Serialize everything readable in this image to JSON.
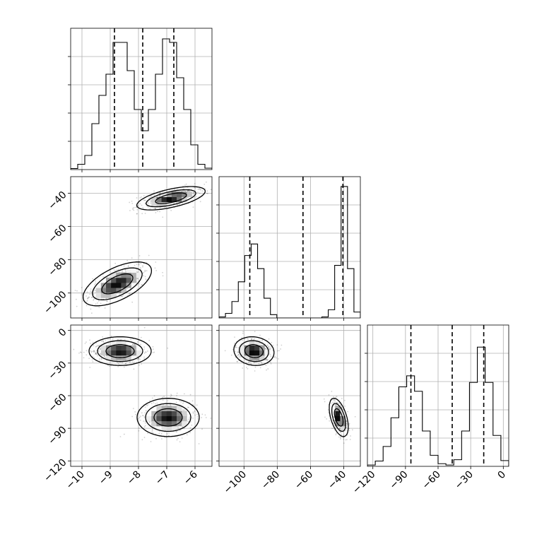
{
  "chart_data": {
    "type": "corner",
    "grid": true,
    "parameters": [
      {
        "range": [
          -10.4,
          -5.4
        ],
        "ticks": [
          -10,
          -9,
          -8,
          -7,
          -6
        ],
        "tick_labels": [
          "−10",
          "−9",
          "−8",
          "−7",
          "−6"
        ],
        "quantiles": [
          -8.85,
          -7.85,
          -6.75
        ],
        "histogram": {
          "counts": [
            0.3,
            1.5,
            4,
            13,
            21,
            27,
            36,
            36,
            28,
            17,
            11,
            17,
            27,
            37,
            36,
            26,
            17,
            7,
            1.5,
            0.4
          ],
          "ymax": 40
        }
      },
      {
        "range": [
          -115,
          -30
        ],
        "ticks": [
          -100,
          -80,
          -60,
          -40
        ],
        "tick_labels": [
          "−100",
          "−80",
          "−60",
          "−40"
        ],
        "quantiles": [
          -96.5,
          -64.5,
          -40.5
        ],
        "histogram": {
          "counts": [
            0.3,
            1.4,
            5,
            11,
            19,
            22.5,
            15,
            6,
            1,
            0,
            0,
            0,
            0,
            0,
            0,
            0,
            0.3,
            2.5,
            16,
            40,
            15,
            1.8
          ],
          "ymax": 43
        }
      },
      {
        "range": [
          -125,
          5
        ],
        "ticks": [
          -120,
          -90,
          -60,
          -30,
          0
        ],
        "tick_labels": [
          "−120",
          "−90",
          "−60",
          "−30",
          "0"
        ],
        "quantiles": [
          -85,
          -47,
          -18
        ],
        "histogram": {
          "counts": [
            0.3,
            1.2,
            4.5,
            11,
            18,
            20.5,
            17,
            8,
            2.5,
            0.6,
            0.3,
            1.5,
            8,
            19,
            27,
            19,
            7,
            1.3
          ],
          "ymax": 32
        }
      }
    ],
    "pairs": [
      {
        "x_param": 0,
        "y_param": 1,
        "modes": [
          {
            "cx": -8.75,
            "cy": -94.5,
            "sx": 0.55,
            "sy": 6.0,
            "rho": 0.6,
            "weight": 0.5
          },
          {
            "cx": -6.85,
            "cy": -43.0,
            "sx": 0.55,
            "sy": 3.2,
            "rho": 0.6,
            "weight": 0.5
          }
        ]
      },
      {
        "x_param": 0,
        "y_param": 2,
        "modes": [
          {
            "cx": -8.65,
            "cy": -19.0,
            "sx": 0.5,
            "sy": 6.0,
            "rho": 0.0,
            "weight": 0.5
          },
          {
            "cx": -6.95,
            "cy": -80.0,
            "sx": 0.5,
            "sy": 8.0,
            "rho": 0.0,
            "weight": 0.5
          }
        ]
      },
      {
        "x_param": 1,
        "y_param": 2,
        "modes": [
          {
            "cx": -94.0,
            "cy": -19.0,
            "sx": 5.5,
            "sy": 6.0,
            "rho": -0.1,
            "weight": 0.5
          },
          {
            "cx": -43.0,
            "cy": -80.0,
            "sx": 2.6,
            "sy": 8.0,
            "rho": -0.5,
            "weight": 0.5
          }
        ]
      }
    ]
  }
}
